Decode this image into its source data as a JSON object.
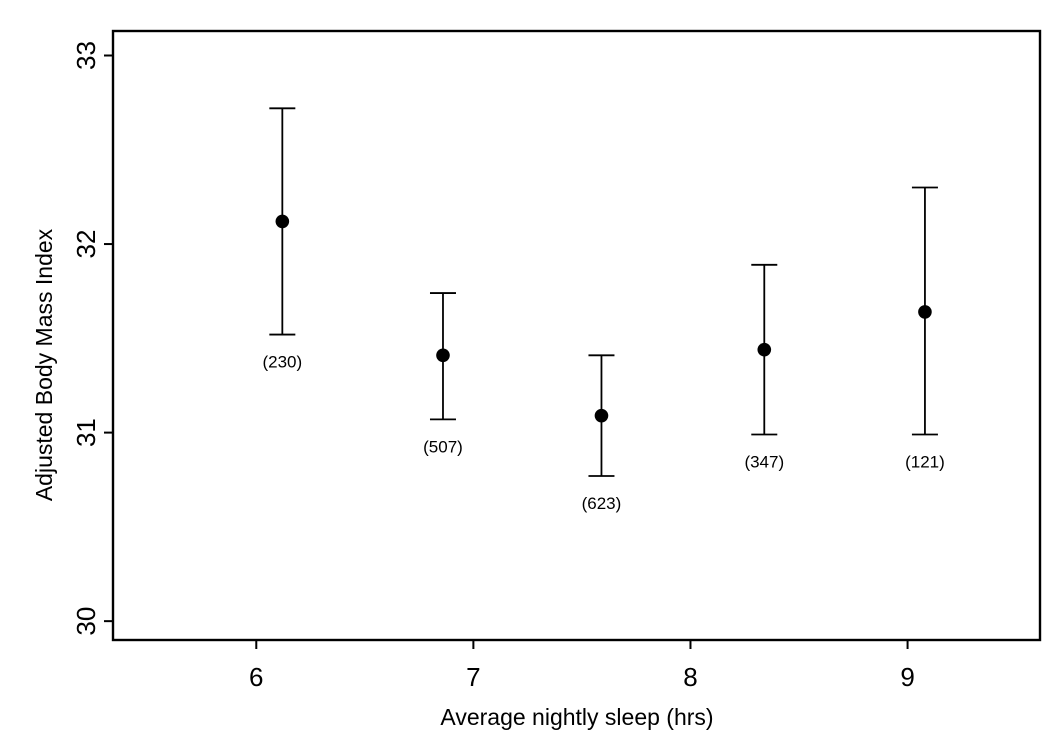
{
  "figure": {
    "background_color": "#ffffff",
    "ink_color": "#000000"
  },
  "chart_data": {
    "type": "scatter",
    "subtype": "means-with-95ci-error-bars",
    "title": "",
    "xlabel": "Average nightly sleep (hrs)",
    "ylabel": "Adjusted Body Mass Index",
    "x_ticks": [
      6,
      7,
      8,
      9
    ],
    "y_ticks": [
      30,
      31,
      32,
      33
    ],
    "xlim": [
      5.34,
      9.61
    ],
    "ylim": [
      29.9,
      33.13
    ],
    "grid": false,
    "legend": null,
    "marker": "filled-circle",
    "points": [
      {
        "x": 6.12,
        "y": 32.12,
        "ci_low": 31.52,
        "ci_high": 32.72,
        "n": 230,
        "count_label": "(230)"
      },
      {
        "x": 6.86,
        "y": 31.41,
        "ci_low": 31.07,
        "ci_high": 31.74,
        "n": 507,
        "count_label": "(507)"
      },
      {
        "x": 7.59,
        "y": 31.09,
        "ci_low": 30.77,
        "ci_high": 31.41,
        "n": 623,
        "count_label": "(623)"
      },
      {
        "x": 8.34,
        "y": 31.44,
        "ci_low": 30.99,
        "ci_high": 31.89,
        "n": 347,
        "count_label": "(347)"
      },
      {
        "x": 9.08,
        "y": 31.64,
        "ci_low": 30.99,
        "ci_high": 32.3,
        "n": 121,
        "count_label": "(121)"
      }
    ]
  }
}
